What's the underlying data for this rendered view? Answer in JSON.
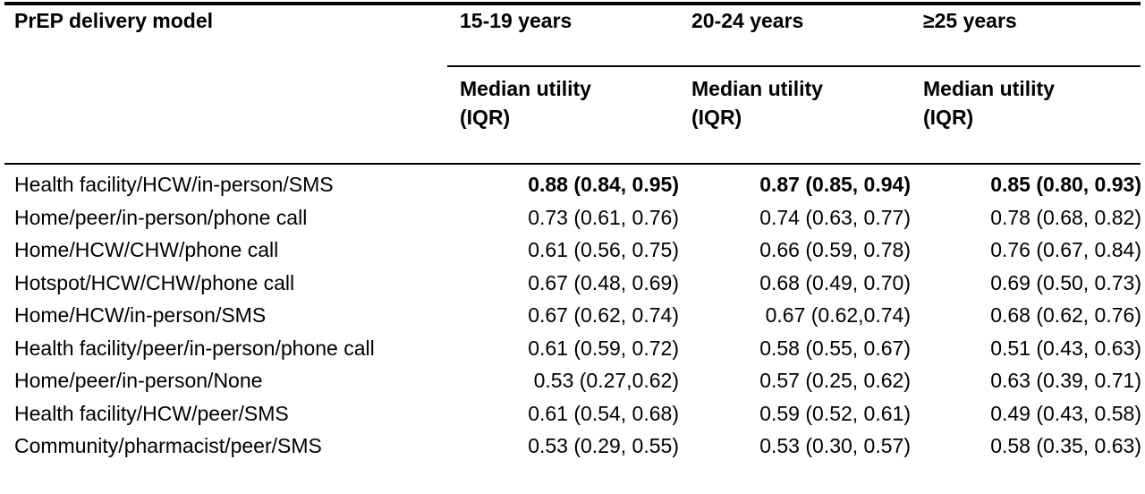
{
  "table": {
    "header": {
      "model": "PrEP delivery model",
      "groups": [
        "15-19 years",
        "20-24 years",
        "≥25 years"
      ],
      "sub_line1": "Median utility",
      "sub_line2": "(IQR)"
    },
    "rows": [
      {
        "model": "Health facility/HCW/in-person/SMS",
        "values": [
          "0.88 (0.84, 0.95)",
          "0.87 (0.85, 0.94)",
          "0.85 (0.80, 0.93)"
        ],
        "bold": true
      },
      {
        "model": "Home/peer/in-person/phone call",
        "values": [
          "0.73 (0.61, 0.76)",
          "0.74 (0.63, 0.77)",
          "0.78 (0.68, 0.82)"
        ],
        "bold": false
      },
      {
        "model": "Home/HCW/CHW/phone call",
        "values": [
          "0.61 (0.56, 0.75)",
          "0.66 (0.59, 0.78)",
          "0.76 (0.67, 0.84)"
        ],
        "bold": false
      },
      {
        "model": "Hotspot/HCW/CHW/phone call",
        "values": [
          "0.67 (0.48, 0.69)",
          "0.68 (0.49, 0.70)",
          "0.69 (0.50, 0.73)"
        ],
        "bold": false
      },
      {
        "model": "Home/HCW/in-person/SMS",
        "values": [
          "0.67 (0.62, 0.74)",
          "0.67 (0.62,0.74)",
          "0.68 (0.62, 0.76)"
        ],
        "bold": false
      },
      {
        "model": "Health facility/peer/in-person/phone call",
        "values": [
          "0.61 (0.59, 0.72)",
          "0.58 (0.55, 0.67)",
          "0.51 (0.43, 0.63)"
        ],
        "bold": false
      },
      {
        "model": "Home/peer/in-person/None",
        "values": [
          "0.53 (0.27,0.62)",
          "0.57 (0.25, 0.62)",
          "0.63 (0.39, 0.71)"
        ],
        "bold": false
      },
      {
        "model": "Health facility/HCW/peer/SMS",
        "values": [
          "0.61 (0.54, 0.68)",
          "0.59 (0.52, 0.61)",
          "0.49 (0.43, 0.58)"
        ],
        "bold": false
      },
      {
        "model": "Community/pharmacist/peer/SMS",
        "values": [
          "0.53 (0.29, 0.55)",
          "0.53 (0.30, 0.57)",
          "0.58 (0.35, 0.63)"
        ],
        "bold": false
      }
    ]
  }
}
